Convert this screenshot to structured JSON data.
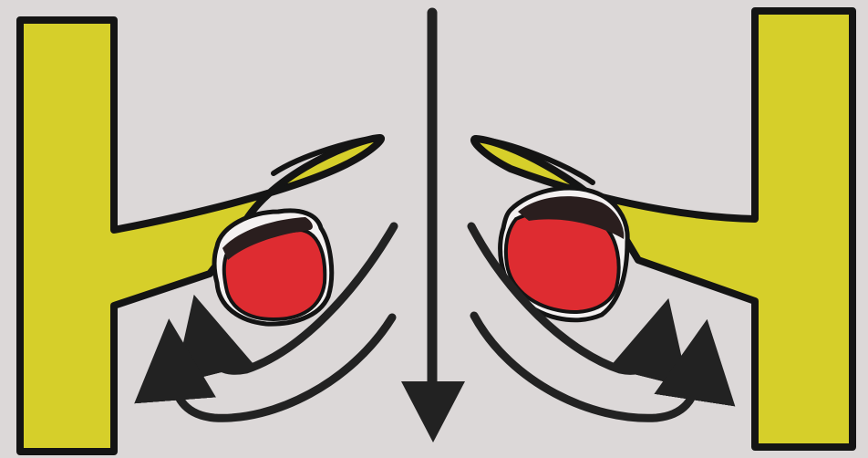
{
  "diagram": {
    "background": "#dcd8d8",
    "colors": {
      "wall": "#d6cf2a",
      "outline": "#141414",
      "deposit": "#de2c31",
      "deposit_crust": "#2a1e1e",
      "deposit_rim": "#f4f1f1",
      "arrow": "#222222"
    },
    "parts": {
      "left_wall": "yellow-wall",
      "right_wall": "yellow-wall",
      "left_deposit": "red-deposit",
      "right_deposit": "red-deposit",
      "center_flow": "down-arrow",
      "left_eddies": "curved-arrows",
      "right_eddies": "curved-arrows"
    }
  }
}
